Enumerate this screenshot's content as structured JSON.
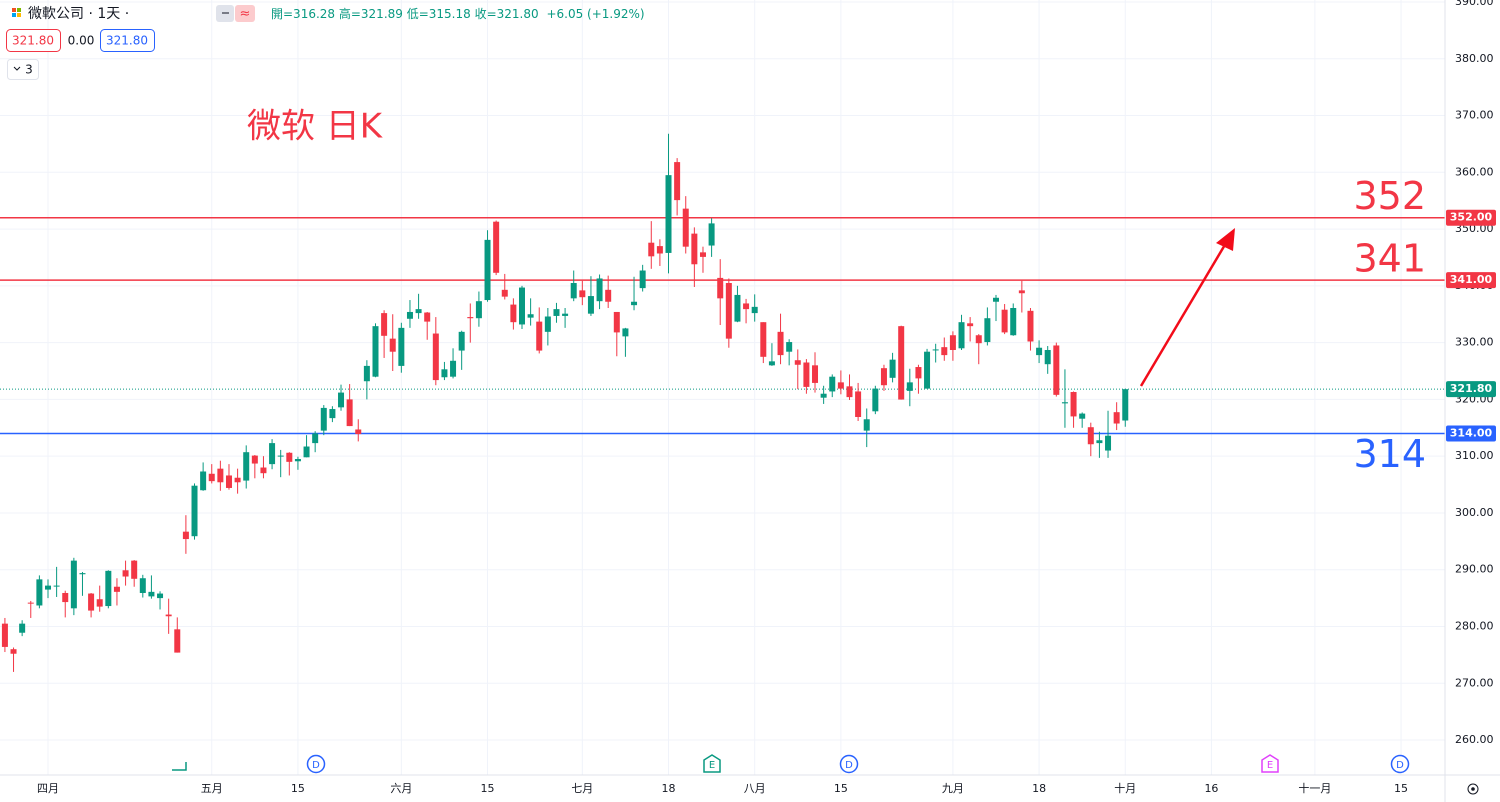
{
  "header": {
    "symbol": "微軟公司 · 1天 ·",
    "ohlc": "開=316.28 高=321.89 低=315.18 收=321.80",
    "change": "+6.05 (+1.92%)",
    "bid": "321.80",
    "spread": "0.00",
    "ask": "321.80",
    "indicators": "3"
  },
  "chart_data": {
    "type": "candlestick",
    "annotation": "微软 日K",
    "up_color": "#089981",
    "down_color": "#f23645",
    "ylim": [
      253.84,
      390.35
    ],
    "yticks": [
      {
        "value": 260,
        "label": "260.00"
      },
      {
        "value": 270,
        "label": "270.00"
      },
      {
        "value": 280,
        "label": "280.00"
      },
      {
        "value": 290,
        "label": "290.00"
      },
      {
        "value": 300,
        "label": "300.00"
      },
      {
        "value": 310,
        "label": "310.00"
      },
      {
        "value": 320,
        "label": "320.00"
      },
      {
        "value": 330,
        "label": "330.00"
      },
      {
        "value": 340,
        "label": "340.00"
      },
      {
        "value": 350,
        "label": "350.00"
      },
      {
        "value": 360,
        "label": "360.00"
      },
      {
        "value": 370,
        "label": "370.00"
      },
      {
        "value": 380,
        "label": "380.00"
      },
      {
        "value": 390,
        "label": "390.00"
      }
    ],
    "xlim": [
      -0.57,
      167.1
    ],
    "xticks": [
      {
        "value": 5,
        "label": "四月"
      },
      {
        "value": 24,
        "label": "五月"
      },
      {
        "value": 34,
        "label": "15"
      },
      {
        "value": 46,
        "label": "六月"
      },
      {
        "value": 56,
        "label": "15"
      },
      {
        "value": 67,
        "label": "七月"
      },
      {
        "value": 77,
        "label": "18"
      },
      {
        "value": 87,
        "label": "八月"
      },
      {
        "value": 97,
        "label": "15"
      },
      {
        "value": 110,
        "label": "九月"
      },
      {
        "value": 120,
        "label": "18"
      },
      {
        "value": 130,
        "label": "十月"
      },
      {
        "value": 140,
        "label": "16"
      },
      {
        "value": 152,
        "label": "十一月"
      },
      {
        "value": 162,
        "label": "15"
      }
    ],
    "grid": true,
    "levels": [
      {
        "value": 352,
        "label": "352.00",
        "big_label": "352",
        "color": "#f23645"
      },
      {
        "value": 341,
        "label": "341.00",
        "big_label": "341",
        "color": "#f23645"
      },
      {
        "value": 314,
        "label": "314.00",
        "big_label": "314",
        "color": "#2962ff"
      }
    ],
    "last_price": {
      "value": 321.8,
      "label": "321.80",
      "color": "#089981"
    },
    "events": [
      "D",
      "E",
      "D",
      "E",
      "D"
    ],
    "ohlc": [
      [
        280.5,
        281.5,
        275.5,
        276.4
      ],
      [
        276.0,
        276.3,
        272.0,
        275.2
      ],
      [
        278.9,
        281.1,
        278.3,
        280.5
      ],
      [
        284.2,
        284.5,
        281.5,
        284.1
      ],
      [
        283.7,
        289.0,
        283.2,
        288.3
      ],
      [
        286.5,
        288.3,
        285.0,
        287.2
      ],
      [
        287.2,
        290.5,
        285.2,
        287.2
      ],
      [
        285.9,
        286.3,
        281.6,
        284.3
      ],
      [
        283.2,
        292.1,
        282.0,
        291.6
      ],
      [
        289.2,
        289.6,
        285.4,
        289.4
      ],
      [
        285.8,
        285.9,
        281.6,
        282.8
      ],
      [
        284.8,
        287.2,
        282.6,
        283.5
      ],
      [
        283.6,
        289.9,
        283.2,
        289.8
      ],
      [
        287.0,
        288.5,
        283.7,
        286.1
      ],
      [
        289.9,
        291.6,
        287.2,
        288.8
      ],
      [
        291.6,
        291.7,
        287.0,
        288.4
      ],
      [
        285.9,
        289.1,
        285.1,
        288.5
      ],
      [
        285.3,
        289.0,
        284.9,
        286.1
      ],
      [
        285.0,
        286.2,
        283.0,
        285.8
      ],
      [
        282.1,
        284.9,
        278.7,
        281.8
      ],
      [
        279.5,
        281.6,
        275.4,
        275.4
      ],
      [
        296.7,
        299.6,
        292.8,
        295.4
      ],
      [
        295.9,
        305.2,
        295.3,
        304.8
      ],
      [
        304.0,
        308.9,
        303.9,
        307.3
      ],
      [
        306.9,
        308.6,
        305.2,
        305.6
      ],
      [
        307.8,
        309.2,
        303.9,
        305.4
      ],
      [
        306.6,
        308.6,
        304.1,
        304.4
      ],
      [
        306.2,
        307.8,
        303.4,
        305.4
      ],
      [
        305.7,
        311.9,
        304.3,
        310.7
      ],
      [
        310.1,
        310.2,
        306.1,
        308.7
      ],
      [
        308.0,
        310.0,
        306.1,
        307.0
      ],
      [
        308.6,
        313.0,
        307.7,
        312.3
      ],
      [
        310.1,
        311.1,
        306.3,
        310.1
      ],
      [
        310.6,
        310.7,
        306.6,
        309.0
      ],
      [
        309.1,
        309.9,
        307.6,
        309.5
      ],
      [
        309.8,
        313.7,
        309.8,
        311.7
      ],
      [
        312.3,
        314.4,
        310.7,
        314.0
      ],
      [
        314.5,
        319.0,
        313.7,
        318.5
      ],
      [
        316.7,
        318.8,
        316.0,
        318.3
      ],
      [
        318.6,
        322.6,
        318.0,
        321.2
      ],
      [
        320.0,
        322.7,
        315.3,
        315.3
      ],
      [
        314.7,
        316.5,
        312.6,
        313.9
      ],
      [
        323.2,
        326.9,
        320.0,
        325.9
      ],
      [
        324.0,
        333.4,
        323.9,
        332.9
      ],
      [
        335.2,
        335.7,
        327.3,
        331.2
      ],
      [
        330.7,
        335.0,
        325.0,
        328.4
      ],
      [
        325.9,
        333.5,
        324.7,
        332.6
      ],
      [
        334.2,
        337.5,
        332.6,
        335.4
      ],
      [
        335.2,
        338.6,
        334.2,
        335.9
      ],
      [
        335.3,
        335.4,
        330.5,
        333.7
      ],
      [
        331.6,
        334.5,
        322.5,
        323.4
      ],
      [
        323.9,
        326.6,
        323.4,
        325.3
      ],
      [
        324.0,
        329.0,
        323.7,
        326.8
      ],
      [
        328.6,
        332.1,
        325.2,
        331.9
      ],
      [
        334.5,
        336.9,
        330.0,
        334.3
      ],
      [
        334.3,
        339.0,
        332.8,
        337.3
      ],
      [
        337.5,
        349.8,
        337.2,
        348.1
      ],
      [
        351.3,
        351.5,
        341.9,
        342.3
      ],
      [
        339.3,
        342.1,
        337.6,
        338.1
      ],
      [
        336.7,
        337.8,
        332.3,
        333.6
      ],
      [
        333.2,
        340.0,
        332.4,
        339.7
      ],
      [
        334.4,
        337.8,
        333.0,
        335.0
      ],
      [
        333.7,
        336.2,
        328.1,
        328.6
      ],
      [
        331.9,
        336.1,
        329.5,
        334.6
      ],
      [
        334.7,
        337.0,
        333.5,
        335.9
      ],
      [
        334.7,
        336.1,
        332.6,
        335.1
      ],
      [
        337.8,
        342.7,
        337.3,
        340.5
      ],
      [
        339.2,
        340.9,
        336.6,
        338.0
      ],
      [
        335.1,
        341.7,
        334.7,
        338.2
      ],
      [
        337.3,
        342.0,
        335.9,
        341.3
      ],
      [
        339.3,
        341.8,
        336.1,
        337.2
      ],
      [
        335.4,
        335.4,
        327.6,
        331.8
      ],
      [
        331.1,
        332.6,
        327.5,
        332.5
      ],
      [
        336.6,
        341.6,
        335.7,
        337.2
      ],
      [
        339.6,
        343.7,
        339.0,
        342.7
      ],
      [
        347.6,
        351.4,
        343.0,
        345.2
      ],
      [
        347.0,
        348.2,
        343.5,
        345.7
      ],
      [
        345.8,
        366.8,
        342.2,
        359.5
      ],
      [
        361.8,
        362.5,
        352.4,
        355.1
      ],
      [
        353.6,
        355.8,
        345.7,
        346.9
      ],
      [
        349.2,
        350.3,
        339.8,
        343.8
      ],
      [
        345.9,
        346.9,
        342.3,
        345.1
      ],
      [
        347.1,
        351.9,
        345.1,
        351.0
      ],
      [
        341.4,
        344.7,
        333.1,
        337.8
      ],
      [
        340.5,
        341.3,
        329.1,
        330.7
      ],
      [
        333.7,
        340.0,
        333.6,
        338.4
      ],
      [
        336.9,
        337.7,
        333.4,
        335.9
      ],
      [
        335.2,
        338.5,
        333.7,
        336.3
      ],
      [
        333.6,
        333.6,
        326.4,
        327.5
      ],
      [
        326.0,
        329.9,
        325.9,
        326.7
      ],
      [
        331.9,
        335.1,
        326.2,
        327.8
      ],
      [
        328.4,
        330.6,
        326.0,
        330.1
      ],
      [
        326.9,
        328.8,
        321.8,
        326.1
      ],
      [
        326.5,
        327.1,
        321.0,
        322.2
      ],
      [
        326.0,
        328.3,
        321.2,
        322.9
      ],
      [
        320.3,
        322.4,
        319.2,
        321.0
      ],
      [
        321.4,
        324.4,
        320.4,
        324.0
      ],
      [
        323.0,
        325.1,
        320.9,
        321.9
      ],
      [
        322.3,
        324.4,
        319.9,
        320.4
      ],
      [
        321.4,
        322.9,
        316.2,
        316.9
      ],
      [
        314.5,
        318.4,
        311.6,
        316.5
      ],
      [
        317.9,
        322.4,
        317.4,
        321.9
      ],
      [
        325.5,
        326.1,
        321.5,
        322.5
      ],
      [
        323.8,
        328.2,
        323.0,
        327.0
      ],
      [
        332.9,
        332.98,
        319.96,
        319.97
      ],
      [
        321.5,
        325.4,
        318.8,
        323.0
      ],
      [
        325.7,
        326.1,
        321.0,
        323.7
      ],
      [
        321.9,
        328.9,
        321.9,
        328.4
      ],
      [
        328.7,
        329.8,
        326.5,
        328.8
      ],
      [
        329.2,
        330.9,
        326.8,
        327.8
      ],
      [
        331.3,
        331.99,
        326.8,
        328.7
      ],
      [
        329.0,
        334.9,
        328.7,
        333.6
      ],
      [
        333.4,
        334.5,
        330.2,
        332.9
      ],
      [
        331.3,
        331.5,
        326.2,
        329.9
      ],
      [
        330.1,
        336.2,
        329.5,
        334.3
      ],
      [
        337.2,
        338.4,
        333.8,
        337.9
      ],
      [
        335.8,
        336.8,
        331.5,
        331.8
      ],
      [
        331.3,
        336.9,
        331.2,
        336.1
      ],
      [
        339.2,
        340.9,
        335.3,
        338.7
      ],
      [
        335.6,
        336.1,
        328.6,
        330.2
      ],
      [
        327.8,
        330.4,
        326.4,
        329.1
      ],
      [
        326.2,
        329.4,
        324.5,
        328.7
      ],
      [
        329.5,
        330.0,
        320.5,
        320.8
      ],
      [
        319.3,
        325.3,
        315.0,
        319.5
      ],
      [
        321.3,
        321.4,
        315.0,
        317.0
      ],
      [
        316.6,
        317.7,
        315.0,
        317.5
      ],
      [
        315.1,
        315.9,
        310.0,
        312.1
      ],
      [
        312.3,
        314.3,
        309.7,
        312.8
      ],
      [
        310.99,
        318.0,
        309.7,
        313.6
      ],
      [
        317.75,
        319.5,
        314.6,
        315.75
      ],
      [
        316.28,
        321.89,
        315.18,
        321.8
      ]
    ]
  }
}
